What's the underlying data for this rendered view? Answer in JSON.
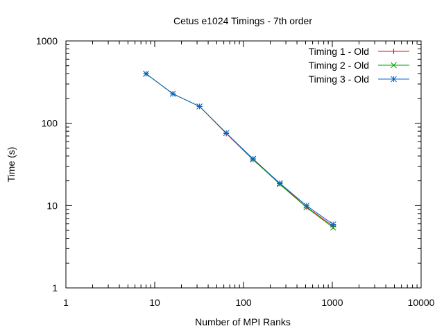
{
  "chart_data": {
    "type": "line",
    "title": "Cetus e1024 Timings - 7th order",
    "xlabel": "Number of MPI Ranks",
    "ylabel": "Time (s)",
    "xscale": "log",
    "yscale": "log",
    "xlim": [
      1,
      10000
    ],
    "ylim": [
      1,
      1000
    ],
    "xticks": [
      1,
      10,
      100,
      1000,
      10000
    ],
    "xtick_labels": [
      "1",
      "10",
      "100",
      "1000",
      "10000"
    ],
    "yticks": [
      1,
      10,
      100,
      1000
    ],
    "ytick_labels": [
      "1",
      "10",
      "100",
      "1000"
    ],
    "grid": false,
    "legend_position": "top-right",
    "series": [
      {
        "name": "Timing 1 - Old",
        "color": "#ff0000",
        "marker": "plus",
        "x": [
          8,
          16,
          32,
          64,
          128,
          256,
          512,
          1024
        ],
        "y": [
          400,
          228,
          160,
          75,
          36,
          18.5,
          9.6,
          5.6
        ]
      },
      {
        "name": "Timing 2 - Old",
        "color": "#00a000",
        "marker": "cross",
        "x": [
          8,
          16,
          32,
          64,
          128,
          256,
          512,
          1024
        ],
        "y": [
          398,
          228,
          160,
          76,
          36.5,
          18.2,
          9.5,
          5.4
        ]
      },
      {
        "name": "Timing 3 - Old",
        "color": "#0066cc",
        "marker": "star",
        "x": [
          8,
          16,
          32,
          64,
          128,
          256,
          512,
          1024
        ],
        "y": [
          400,
          228,
          160,
          76,
          37,
          18.7,
          10,
          5.9
        ]
      }
    ]
  }
}
